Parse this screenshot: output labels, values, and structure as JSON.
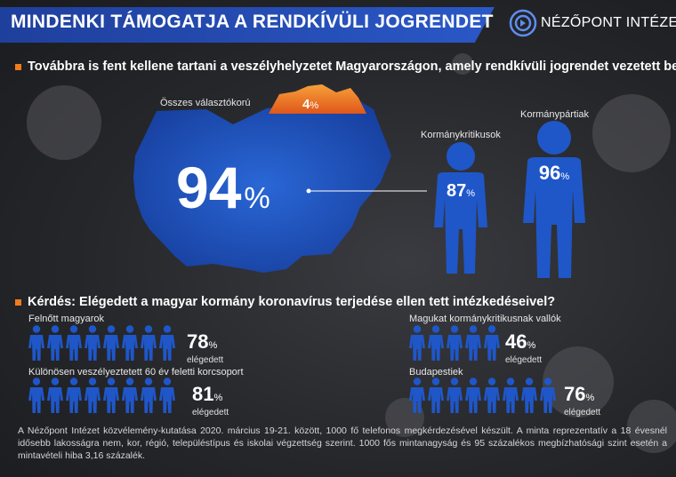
{
  "header": {
    "title": "MINDENKI TÁMOGATJA A RENDKÍVÜLI JOGRENDET",
    "brand": "NÉZŐPONT INTÉZET"
  },
  "q1": {
    "text": "Továbbra is fent kellene tartani a veszélyhelyzetet Magyarországon, amely rendkívüli jogrendet vezetett be"
  },
  "q2": {
    "text": "Kérdés: Elégedett a magyar kormány koronavírus terjedése ellen tett intézkedéseivel?"
  },
  "unit": "%",
  "sub": "elégedett",
  "note": "A Nézőpont Intézet közvélemény-kutatása 2020. március 19-21. között, 1000 fő telefonos megkérdezésével készült. A minta reprezentatív a 18 évesnél idősebb lakosságra nem, kor, régió, településtípus és iskolai végzettség szerint. 1000 fős mintanagyság és 95 százalékos megbízhatósági szint esetén a mintavételi hiba 3,16 százalék.",
  "colors": {
    "blue": "#1f57c9",
    "orange": "#f07c1e",
    "banner": "#2450b8"
  },
  "chart_data": [
    {
      "type": "bar",
      "title": "",
      "categories": [
        "Összes választókorú",
        "Kormánykritikusok",
        "Kormánypártiak"
      ],
      "values": [
        94,
        87,
        96
      ],
      "unit": "%",
      "others_value": 4
    },
    {
      "type": "bar",
      "categories": [
        "Felnőtt magyarok",
        "Különösen veszélyeztetett 60 év feletti korcsoport",
        "Magukat kormánykritikusnak vallók",
        "Budapestiek"
      ],
      "values": [
        78,
        81,
        46,
        76
      ],
      "unit": "%",
      "series": [
        {
          "name": "elégedett",
          "values": [
            78,
            81,
            46,
            76
          ]
        }
      ]
    }
  ]
}
